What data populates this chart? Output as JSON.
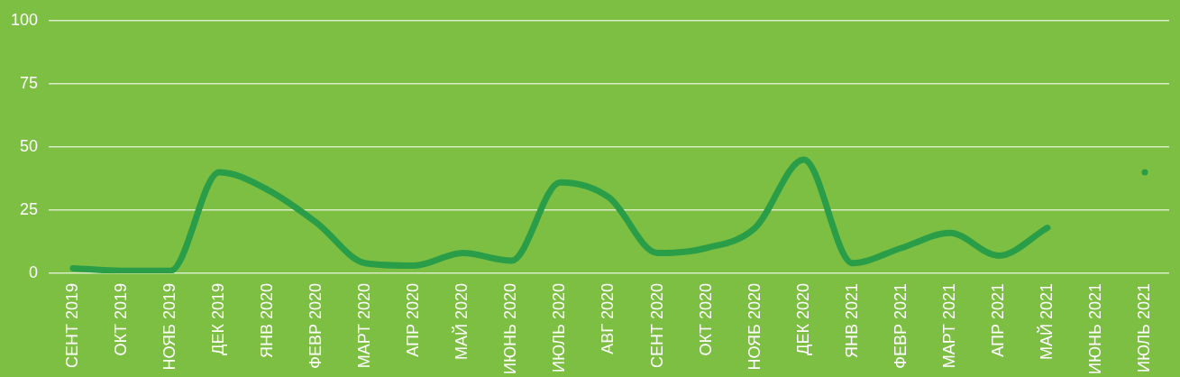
{
  "chart_data": {
    "type": "line",
    "categories": [
      "СЕНТ 2019",
      "ОКТ 2019",
      "НОЯБ 2019",
      "ДЕК 2019",
      "ЯНВ 2020",
      "ФЕВР 2020",
      "МАРТ 2020",
      "АПР 2020",
      "МАЙ 2020",
      "ИЮНЬ 2020",
      "ИЮЛЬ 2020",
      "АВГ 2020",
      "СЕНТ 2020",
      "ОКТ 2020",
      "НОЯБ 2020",
      "ДЕК 2020",
      "ЯНВ 2021",
      "ФЕВР 2021",
      "МАРТ 2021",
      "АПР 2021",
      "МАЙ 2021",
      "ИЮНЬ 2021",
      "ИЮЛЬ 2021"
    ],
    "series": [
      {
        "color": "#2a9d48",
        "values": [
          2,
          1,
          1,
          40,
          33,
          20,
          4,
          3,
          8,
          5,
          36,
          30,
          8,
          10,
          18,
          45,
          4,
          10,
          16,
          7,
          18,
          null,
          40
        ]
      }
    ],
    "ylim": [
      0,
      100
    ],
    "yticks": [
      0,
      25,
      50,
      75,
      100
    ],
    "grid": "y",
    "legend": false,
    "marker": "none",
    "line_style": "solid"
  }
}
